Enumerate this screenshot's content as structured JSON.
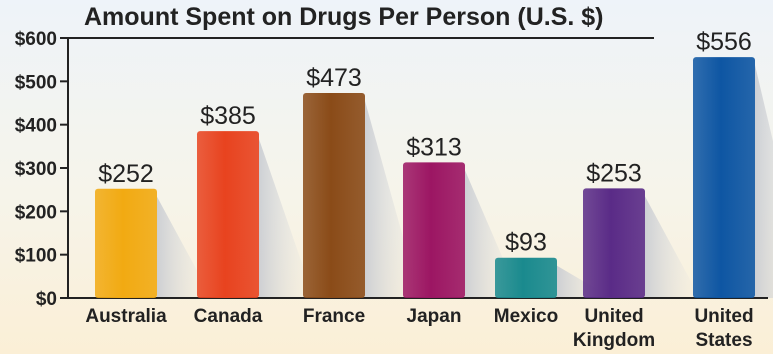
{
  "chart_data": {
    "type": "bar",
    "title": "Amount Spent on Drugs Per Person (U.S. $)",
    "xlabel": "",
    "ylabel": "",
    "categories": [
      "Australia",
      "Canada",
      "France",
      "Japan",
      "Mexico",
      "United Kingdom",
      "United States"
    ],
    "category_lines": [
      [
        "Australia"
      ],
      [
        "Canada"
      ],
      [
        "France"
      ],
      [
        "Japan"
      ],
      [
        "Mexico"
      ],
      [
        "United",
        "Kingdom"
      ],
      [
        "United",
        "States"
      ]
    ],
    "values": [
      252,
      385,
      473,
      313,
      93,
      253,
      556
    ],
    "value_labels": [
      "$252",
      "$385",
      "$473",
      "$313",
      "$93",
      "$253",
      "$556"
    ],
    "colors": [
      "#f2aa12",
      "#e8431f",
      "#8a4b18",
      "#9c1663",
      "#1a8a8e",
      "#5a2b87",
      "#0e56a3"
    ],
    "ylim": [
      0,
      600
    ],
    "y_ticks": [
      0,
      100,
      200,
      300,
      400,
      500,
      600
    ],
    "y_tick_labels": [
      "$0",
      "$100",
      "$200",
      "$300",
      "$400",
      "$500",
      "$600"
    ],
    "grid": false,
    "legend": "none"
  }
}
